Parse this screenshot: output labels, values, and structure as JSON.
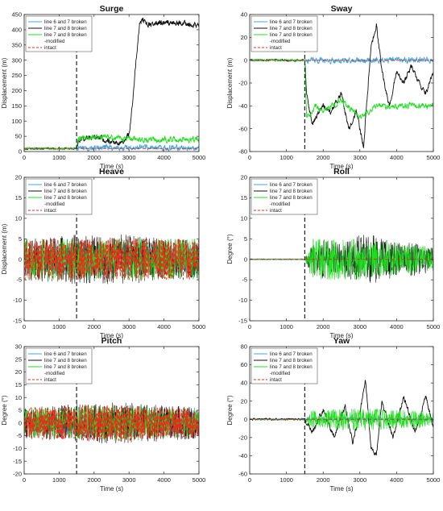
{
  "colors": {
    "line67": "#3fa7e0",
    "line78": "#111111",
    "line78mod": "#1ee01e",
    "intact": "#ee2a1a",
    "failure_marker": "#222222"
  },
  "legend": {
    "entries": [
      "line 6 and 7 broken",
      "line 7 and 8 broken",
      "line 7 and 8 broken",
      "intact"
    ],
    "modified_suffix": "-modified"
  },
  "chart_data": [
    {
      "type": "line",
      "title": "Surge",
      "xlabel": "Time (s)",
      "ylabel": "Displacement (m)",
      "xlim": [
        0,
        5000
      ],
      "ylim": [
        0,
        450
      ],
      "xticks": [
        0,
        1000,
        2000,
        3000,
        4000,
        5000
      ],
      "yticks": [
        0,
        50,
        100,
        150,
        200,
        250,
        300,
        350,
        400,
        450
      ],
      "failure_time": 1500,
      "grid": false,
      "legend_position": "top-left",
      "series": [
        {
          "name": "line 6 and 7 broken",
          "color_key": "line67",
          "x": [
            0,
            500,
            1000,
            1500,
            2000,
            2500,
            3000,
            3500,
            4000,
            4500,
            5000
          ],
          "y": [
            10,
            10,
            10,
            10,
            12,
            12,
            12,
            12,
            12,
            12,
            12
          ]
        },
        {
          "name": "line 7 and 8 broken",
          "color_key": "line78",
          "x": [
            0,
            500,
            1000,
            1500,
            1550,
            2000,
            2500,
            2800,
            3000,
            3100,
            3200,
            3300,
            3400,
            3500,
            4000,
            4500,
            5000
          ],
          "y": [
            10,
            10,
            10,
            10,
            40,
            45,
            35,
            25,
            60,
            150,
            300,
            420,
            430,
            415,
            425,
            420,
            415
          ]
        },
        {
          "name": "line 7 and 8 broken -modified",
          "color_key": "line78mod",
          "x": [
            0,
            500,
            1000,
            1500,
            1550,
            2000,
            2500,
            3000,
            3500,
            4000,
            4500,
            5000
          ],
          "y": [
            10,
            10,
            10,
            10,
            45,
            48,
            45,
            42,
            38,
            40,
            40,
            40
          ]
        },
        {
          "name": "intact",
          "color_key": "intact",
          "dashed": true,
          "x": [
            0,
            1000,
            2000,
            3000,
            4000,
            5000
          ],
          "y": [
            10,
            10,
            10,
            10,
            10,
            10
          ]
        }
      ]
    },
    {
      "type": "line",
      "title": "Sway",
      "xlabel": "Time (s)",
      "ylabel": "Displacement (m)",
      "xlim": [
        0,
        5000
      ],
      "ylim": [
        -80,
        40
      ],
      "xticks": [
        0,
        1000,
        2000,
        3000,
        4000,
        5000
      ],
      "yticks": [
        -80,
        -60,
        -40,
        -20,
        0,
        20,
        40
      ],
      "failure_time": 1500,
      "grid": false,
      "legend_position": "top-left",
      "series": [
        {
          "name": "line 6 and 7 broken",
          "color_key": "line67",
          "x": [
            0,
            1000,
            2000,
            3000,
            4000,
            5000
          ],
          "y": [
            0,
            0,
            0,
            0,
            0,
            0
          ]
        },
        {
          "name": "line 7 and 8 broken",
          "color_key": "line78",
          "x": [
            0,
            1500,
            1550,
            1700,
            2000,
            2200,
            2500,
            2700,
            2900,
            3100,
            3300,
            3450,
            3600,
            3800,
            4000,
            4200,
            4400,
            4600,
            4800,
            5000
          ],
          "y": [
            0,
            0,
            -30,
            -55,
            -40,
            -45,
            -30,
            -60,
            -45,
            -75,
            10,
            30,
            -10,
            -40,
            -10,
            -20,
            -5,
            -20,
            -30,
            -10
          ]
        },
        {
          "name": "line 7 and 8 broken -modified",
          "color_key": "line78mod",
          "x": [
            0,
            1500,
            1550,
            1800,
            2000,
            2500,
            3000,
            3500,
            4000,
            4500,
            5000
          ],
          "y": [
            0,
            0,
            -50,
            -40,
            -45,
            -35,
            -50,
            -40,
            -40,
            -40,
            -40
          ]
        },
        {
          "name": "intact",
          "color_key": "intact",
          "dashed": true,
          "x": [
            0,
            1000,
            2000,
            3000,
            4000,
            5000
          ],
          "y": [
            0,
            0,
            0,
            0,
            0,
            0
          ]
        }
      ]
    },
    {
      "type": "line",
      "title": "Heave",
      "xlabel": "Time (s)",
      "ylabel": "Displacement (m)",
      "xlim": [
        0,
        5000
      ],
      "ylim": [
        -15,
        20
      ],
      "xticks": [
        0,
        1000,
        2000,
        3000,
        4000,
        5000
      ],
      "yticks": [
        -15,
        -10,
        -5,
        0,
        5,
        10,
        15,
        20
      ],
      "failure_time": 1500,
      "grid": false,
      "legend_position": "top-left",
      "series": [
        {
          "name": "line 6 and 7 broken",
          "color_key": "line67",
          "x": [
            0,
            1000,
            2000,
            3000,
            4000,
            5000
          ],
          "y": [
            0,
            0,
            0,
            0,
            0,
            0
          ],
          "envelope": [
            4,
            4,
            4,
            4,
            4,
            4
          ]
        },
        {
          "name": "line 7 and 8 broken",
          "color_key": "line78",
          "x": [
            0,
            1000,
            2000,
            3000,
            4000,
            5000
          ],
          "y": [
            0,
            0,
            0,
            0,
            0,
            0
          ],
          "envelope": [
            5,
            6,
            6,
            6,
            5,
            5
          ]
        },
        {
          "name": "line 7 and 8 broken -modified",
          "color_key": "line78mod",
          "x": [
            0,
            1000,
            2000,
            3000,
            4000,
            5000
          ],
          "y": [
            0,
            0,
            0,
            0,
            0,
            0
          ],
          "envelope": [
            5,
            5,
            5,
            5,
            5,
            5
          ]
        },
        {
          "name": "intact",
          "color_key": "intact",
          "dashed": true,
          "x": [
            0,
            1000,
            2000,
            3000,
            4000,
            5000
          ],
          "y": [
            0,
            0,
            0,
            0,
            0,
            0
          ],
          "envelope": [
            5,
            5,
            5,
            5,
            5,
            5
          ]
        }
      ]
    },
    {
      "type": "line",
      "title": "Roll",
      "xlabel": "",
      "ylabel": "Degree (°)",
      "xlim": [
        0,
        5000
      ],
      "ylim": [
        -15,
        20
      ],
      "xticks": [
        0,
        1000,
        2000,
        3000,
        4000,
        5000
      ],
      "yticks": [
        -15,
        -10,
        -5,
        0,
        5,
        10,
        15,
        20
      ],
      "failure_time": 1500,
      "grid": false,
      "legend_position": "top-left",
      "series": [
        {
          "name": "line 6 and 7 broken",
          "color_key": "line67",
          "x": [
            0,
            1500,
            2000,
            3000,
            4000,
            5000
          ],
          "y": [
            0,
            0,
            0,
            0,
            0,
            0
          ],
          "envelope": [
            0.2,
            0.2,
            1,
            1,
            1,
            1
          ]
        },
        {
          "name": "line 7 and 8 broken",
          "color_key": "line78",
          "x": [
            0,
            1500,
            1700,
            2000,
            2500,
            3000,
            3500,
            4000,
            4500,
            5000
          ],
          "y": [
            0,
            0,
            0,
            0,
            0,
            0,
            0,
            0,
            0,
            0
          ],
          "envelope": [
            0.1,
            0.1,
            4,
            5,
            4,
            6,
            6,
            4,
            4,
            3
          ]
        },
        {
          "name": "line 7 and 8 broken -modified",
          "color_key": "line78mod",
          "x": [
            0,
            1500,
            1700,
            2000,
            3000,
            4000,
            5000
          ],
          "y": [
            0,
            0,
            0,
            0,
            0,
            0,
            0
          ],
          "envelope": [
            0.1,
            0.1,
            5,
            5,
            5,
            4,
            3
          ]
        },
        {
          "name": "intact",
          "color_key": "intact",
          "dashed": true,
          "x": [
            0,
            1000,
            2000,
            3000,
            4000,
            5000
          ],
          "y": [
            0,
            0,
            0,
            0,
            0,
            0
          ]
        }
      ]
    },
    {
      "type": "line",
      "title": "Pitch",
      "xlabel": "Time (s)",
      "ylabel": "Degree (°)",
      "xlim": [
        0,
        5000
      ],
      "ylim": [
        -20,
        30
      ],
      "xticks": [
        0,
        1000,
        2000,
        3000,
        4000,
        5000
      ],
      "yticks": [
        -20,
        -15,
        -10,
        -5,
        0,
        5,
        10,
        15,
        20,
        25,
        30
      ],
      "failure_time": 1500,
      "grid": false,
      "legend_position": "top-left",
      "series": [
        {
          "name": "line 6 and 7 broken",
          "color_key": "line67",
          "x": [
            0,
            1000,
            2000,
            3000,
            4000,
            5000
          ],
          "y": [
            0,
            0,
            0,
            0,
            0,
            0
          ],
          "envelope": [
            5,
            5,
            5,
            5,
            5,
            5
          ]
        },
        {
          "name": "line 7 and 8 broken",
          "color_key": "line78",
          "x": [
            0,
            1000,
            2000,
            3000,
            4000,
            5000
          ],
          "y": [
            0,
            0,
            0,
            0,
            0,
            0
          ],
          "envelope": [
            6,
            7,
            8,
            8,
            7,
            6
          ]
        },
        {
          "name": "line 7 and 8 broken -modified",
          "color_key": "line78mod",
          "x": [
            0,
            1000,
            2000,
            3000,
            4000,
            5000
          ],
          "y": [
            0,
            0,
            0,
            0,
            0,
            0
          ],
          "envelope": [
            6,
            6,
            7,
            7,
            6,
            6
          ]
        },
        {
          "name": "intact",
          "color_key": "intact",
          "dashed": true,
          "x": [
            0,
            1000,
            2000,
            3000,
            4000,
            5000
          ],
          "y": [
            0,
            0,
            0,
            0,
            0,
            0
          ],
          "envelope": [
            6,
            7,
            7,
            7,
            6,
            6
          ]
        }
      ]
    },
    {
      "type": "line",
      "title": "Yaw",
      "xlabel": "Time (s)",
      "ylabel": "Degree (°)",
      "xlim": [
        0,
        5000
      ],
      "ylim": [
        -60,
        80
      ],
      "xticks": [
        0,
        1000,
        2000,
        3000,
        4000,
        5000
      ],
      "yticks": [
        -60,
        -40,
        -20,
        0,
        20,
        40,
        60,
        80
      ],
      "failure_time": 1500,
      "grid": false,
      "legend_position": "top-left",
      "series": [
        {
          "name": "line 6 and 7 broken",
          "color_key": "line67",
          "x": [
            0,
            1000,
            2000,
            3000,
            4000,
            5000
          ],
          "y": [
            0,
            0,
            0,
            0,
            0,
            0
          ]
        },
        {
          "name": "line 7 and 8 broken",
          "color_key": "line78",
          "x": [
            0,
            1500,
            1700,
            2000,
            2300,
            2600,
            2800,
            3000,
            3150,
            3300,
            3450,
            3600,
            3900,
            4200,
            4500,
            4800,
            5000
          ],
          "y": [
            0,
            0,
            -15,
            10,
            -20,
            15,
            -25,
            5,
            45,
            -30,
            -40,
            20,
            -20,
            25,
            -15,
            25,
            -10
          ]
        },
        {
          "name": "line 7 and 8 broken -modified",
          "color_key": "line78mod",
          "x": [
            0,
            1500,
            1700,
            2000,
            2500,
            3000,
            3500,
            4000,
            4500,
            5000
          ],
          "y": [
            0,
            0,
            0,
            0,
            0,
            0,
            0,
            0,
            0,
            0
          ],
          "envelope": [
            0,
            0,
            10,
            10,
            12,
            12,
            12,
            10,
            10,
            8
          ]
        },
        {
          "name": "intact",
          "color_key": "intact",
          "dashed": true,
          "x": [
            0,
            1000,
            2000,
            3000,
            4000,
            5000
          ],
          "y": [
            0,
            0,
            0,
            0,
            0,
            0
          ]
        }
      ]
    }
  ]
}
